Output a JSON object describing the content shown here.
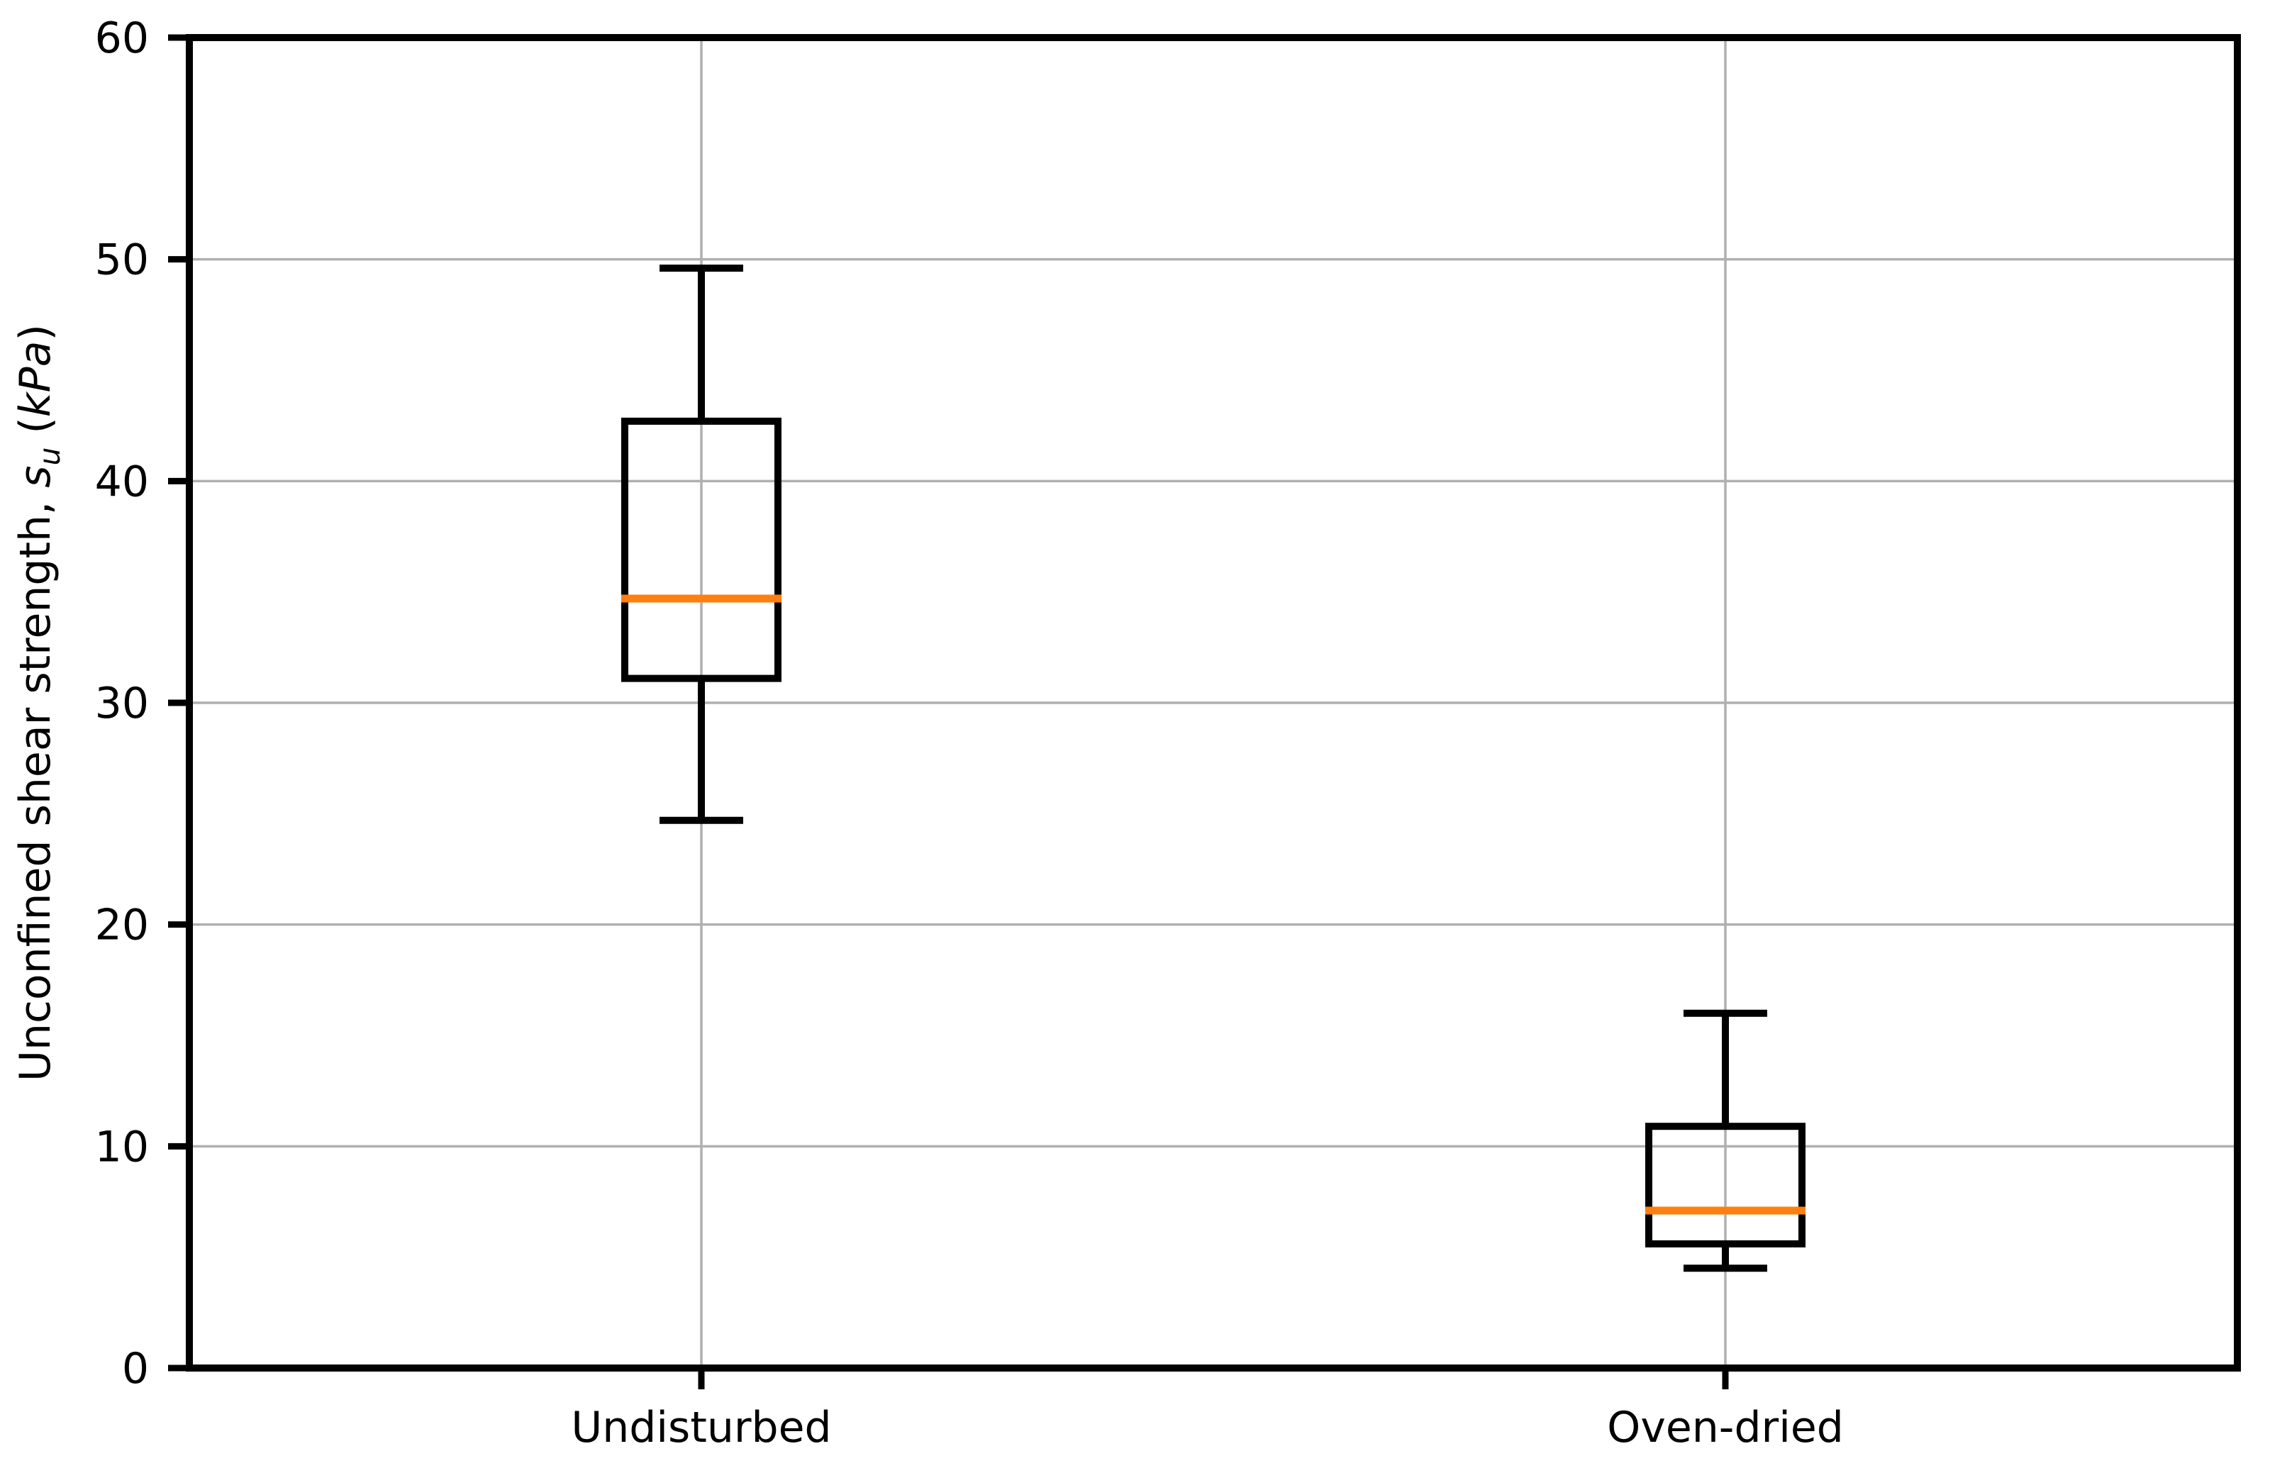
{
  "chart_data": {
    "type": "boxplot",
    "title": "",
    "xlabel": "",
    "ylabel": "Unconfined shear strength, su (kPa)",
    "ylabel_parts": {
      "prefix": "Unconfined shear strength, ",
      "symbol": "s",
      "subscript": "u",
      "open_paren": " (",
      "unit": "kPa",
      "close_paren": ")"
    },
    "ylim": [
      0,
      60
    ],
    "yticks": [
      0,
      10,
      20,
      30,
      40,
      50,
      60
    ],
    "grid": true,
    "legend_position": "none",
    "categories": [
      "Undisturbed",
      "Oven-dried"
    ],
    "series": [
      {
        "name": "Undisturbed",
        "whisker_low": 24.7,
        "q1": 31.1,
        "median": 34.7,
        "q3": 42.7,
        "whisker_high": 49.6
      },
      {
        "name": "Oven-dried",
        "whisker_low": 4.5,
        "q1": 5.6,
        "median": 7.1,
        "q3": 10.9,
        "whisker_high": 16.0
      }
    ],
    "colors": {
      "box": "#000000",
      "whisker": "#000000",
      "median": "#ff7f0e",
      "grid": "#b0b0b0",
      "axis": "#000000",
      "text": "#000000",
      "background": "#ffffff"
    }
  }
}
